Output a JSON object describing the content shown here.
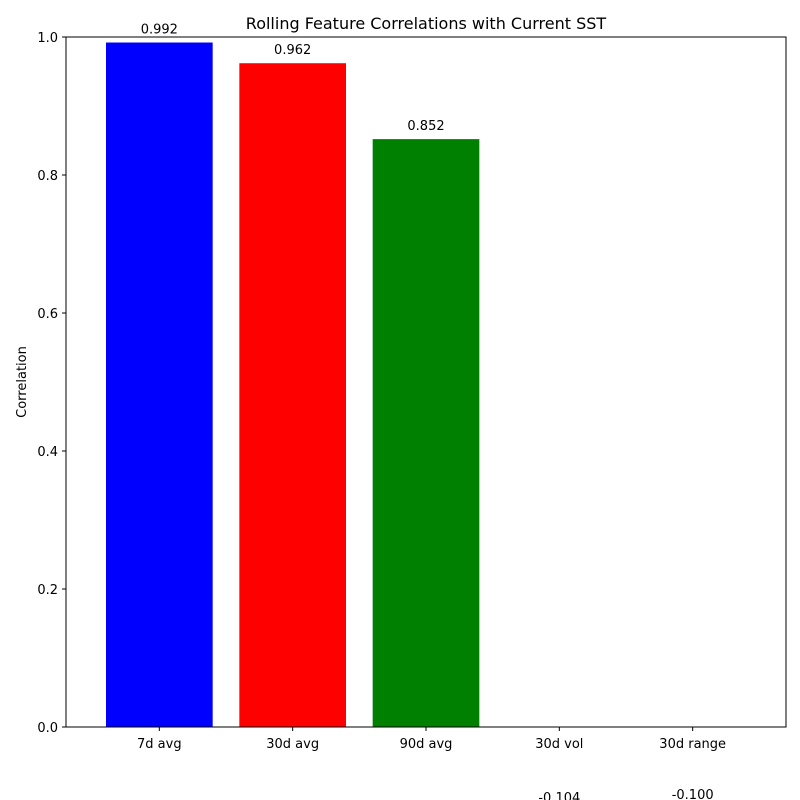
{
  "chart_data": {
    "type": "bar",
    "title": "Rolling Feature Correlations with Current SST",
    "xlabel": "",
    "ylabel": "Correlation",
    "categories": [
      "7d avg",
      "30d avg",
      "90d avg",
      "30d vol",
      "30d range"
    ],
    "values": [
      0.992,
      0.962,
      0.852,
      -0.104,
      -0.1
    ],
    "value_labels": [
      "0.992",
      "0.962",
      "0.852",
      "-0.104",
      "-0.100"
    ],
    "colors": [
      "#0000ff",
      "#ff0000",
      "#008000",
      "#800080",
      "#ffa500"
    ],
    "ylim": [
      0,
      1
    ],
    "yticks": [
      0.0,
      0.2,
      0.4,
      0.6,
      0.8,
      1.0
    ],
    "ytick_labels": [
      "0.0",
      "0.2",
      "0.4",
      "0.6",
      "0.8",
      "1.0"
    ],
    "grid": false,
    "legend": "none"
  }
}
